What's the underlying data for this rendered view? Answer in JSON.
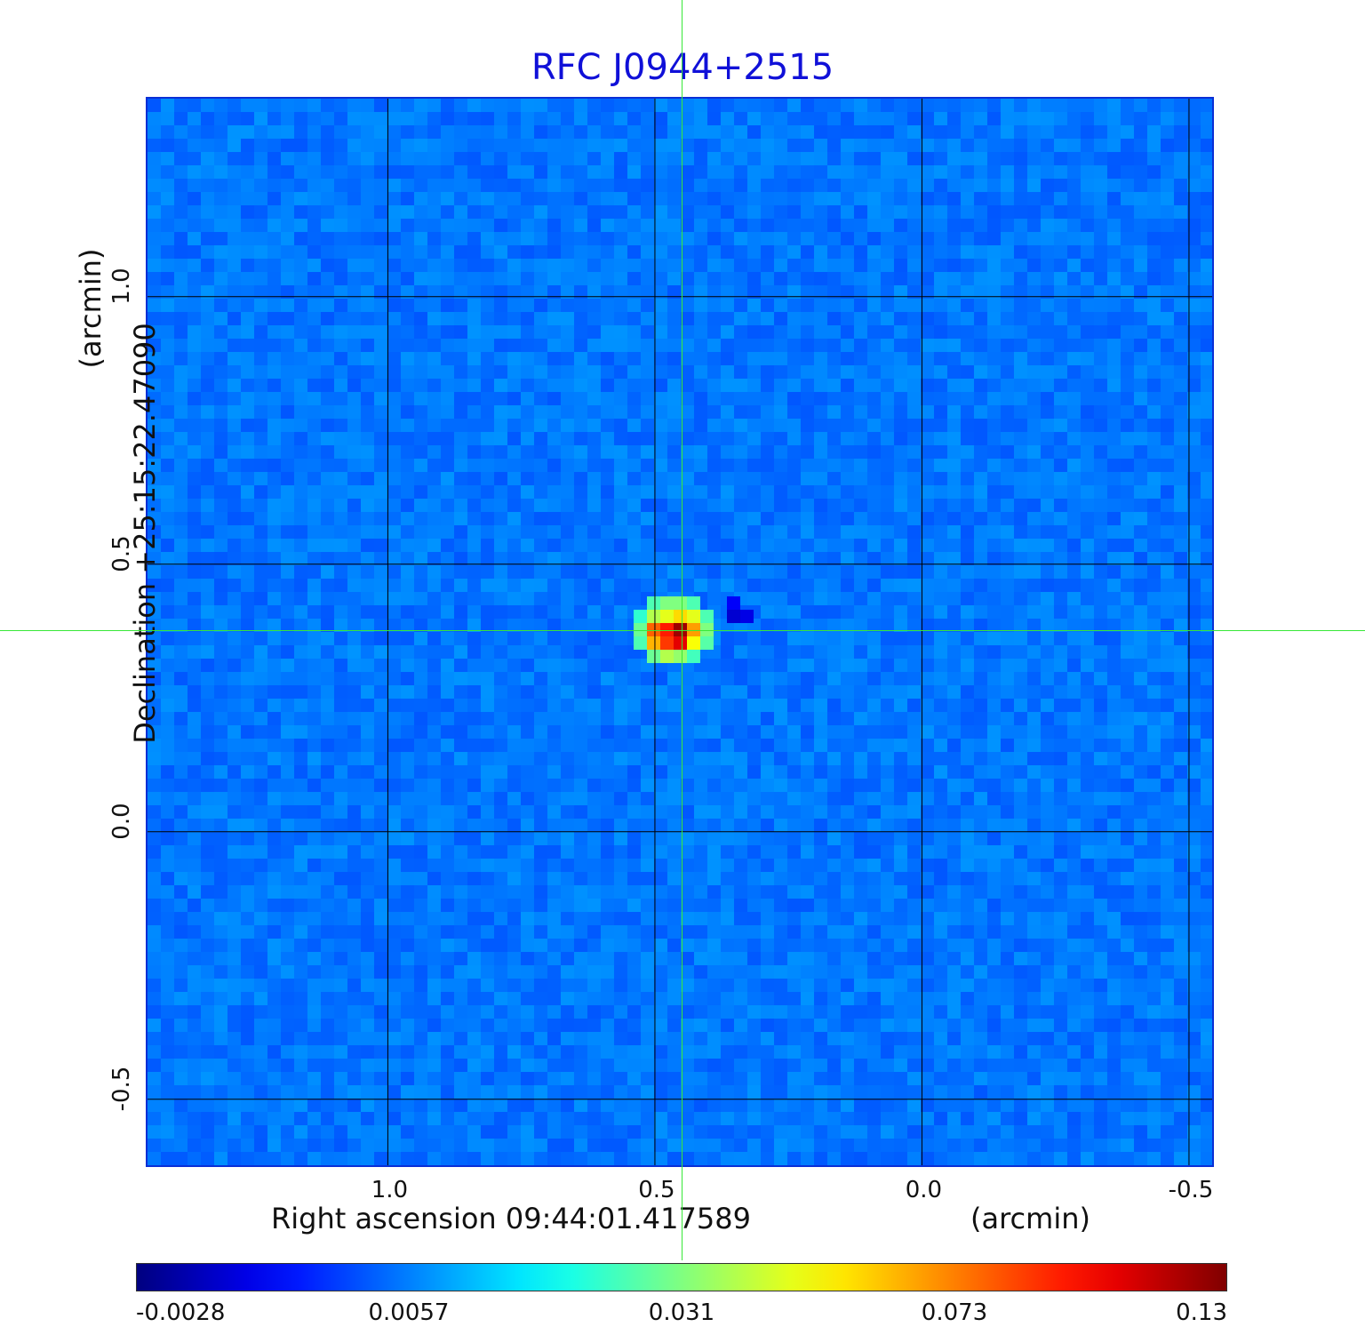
{
  "chart_data": {
    "type": "heatmap",
    "title": "RFC J0944+2515",
    "xlabel": "Right ascension  09:44:01.417589",
    "xunit": "(arcmin)",
    "ylabel": "Declination  +25:15:22.47090",
    "yunit": "(arcmin)",
    "x_ticks": [
      "1.0",
      "0.5",
      "0.0",
      "-0.5"
    ],
    "x_tick_values": [
      1.0,
      0.5,
      0.0,
      -0.5
    ],
    "y_ticks": [
      "1.0",
      "0.5",
      "0.0",
      "-0.5"
    ],
    "y_tick_values": [
      1.0,
      0.5,
      0.0,
      -0.5
    ],
    "xlim": [
      1.45,
      -0.55
    ],
    "ylim": [
      -0.63,
      1.37
    ],
    "grid": true,
    "colormap": "jet",
    "colorbar_ticks": [
      "-0.0028",
      "0.0057",
      "0.031",
      "0.073",
      "0.13"
    ],
    "colorbar_tick_values": [
      -0.0028,
      0.0057,
      0.031,
      0.073,
      0.13
    ],
    "source": {
      "x": 0.45,
      "y": 0.375,
      "peak": 0.13
    },
    "crosshair": {
      "x": 0.45,
      "y": 0.375
    }
  },
  "colors": {
    "title": "#1010d8",
    "background_map": "#1f57f0",
    "crosshair": "#38e838",
    "grid": "#000000"
  }
}
